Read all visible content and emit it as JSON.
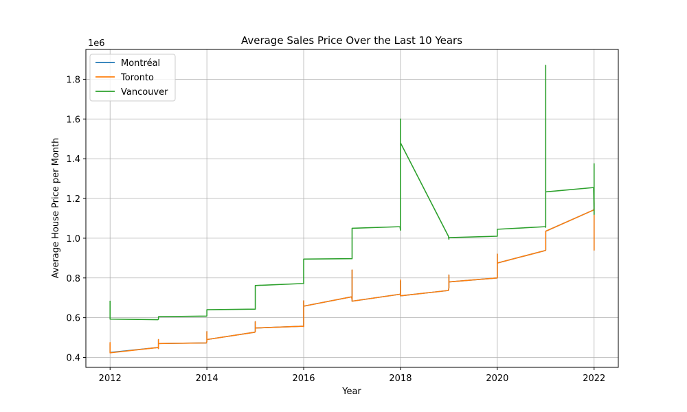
{
  "chart_data": {
    "type": "line",
    "title": "Average Sales Price Over the Last 10 Years",
    "xlabel": "Year",
    "ylabel": "Average House Price per Month",
    "y_offset_label": "1e6",
    "xlim": [
      2011.5,
      2022.5
    ],
    "ylim": [
      0.35,
      1.95
    ],
    "x_ticks": [
      2012,
      2014,
      2016,
      2018,
      2020,
      2022
    ],
    "x_tick_labels": [
      "2012",
      "2014",
      "2016",
      "2018",
      "2020",
      "2022"
    ],
    "y_ticks": [
      0.4,
      0.6,
      0.8,
      1.0,
      1.2,
      1.4,
      1.6,
      1.8
    ],
    "y_tick_labels": [
      "0.4",
      "0.6",
      "0.8",
      "1.0",
      "1.2",
      "1.4",
      "1.6",
      "1.8"
    ],
    "grid": true,
    "legend_position": "top-left",
    "series": [
      {
        "name": "Montréal",
        "color": "#1f77b4",
        "x": [
          2012.0,
          2012.0,
          2012.0,
          2012.99,
          2013.0,
          2013.0,
          2013.0,
          2013.99,
          2014.0,
          2014.0,
          2014.0,
          2014.99,
          2015.0,
          2015.0,
          2015.0,
          2015.99,
          2016.0,
          2016.0,
          2016.0,
          2016.99,
          2017.0,
          2017.0,
          2017.0,
          2017.99,
          2018.0,
          2018.0,
          2018.0,
          2018.99,
          2019.0,
          2019.0,
          2019.0,
          2019.99,
          2020.0,
          2020.0,
          2020.0,
          2020.99,
          2021.0,
          2021.0,
          2021.0,
          2021.99,
          2022.0,
          2022.0,
          2022.0
        ],
        "y": [
          0.425,
          0.47,
          0.425,
          0.45,
          0.445,
          0.49,
          0.47,
          0.473,
          0.48,
          0.53,
          0.49,
          0.527,
          0.53,
          0.58,
          0.548,
          0.557,
          0.555,
          0.685,
          0.658,
          0.705,
          0.69,
          0.84,
          0.683,
          0.718,
          0.715,
          0.785,
          0.71,
          0.737,
          0.75,
          0.815,
          0.78,
          0.8,
          0.8,
          0.92,
          0.875,
          0.938,
          0.94,
          1.035,
          1.035,
          1.142,
          1.15,
          0.94,
          1.18
        ]
      },
      {
        "name": "Toronto",
        "color": "#ff7f0e",
        "x": [
          2012.0,
          2012.0,
          2012.0,
          2012.99,
          2013.0,
          2013.0,
          2013.0,
          2013.99,
          2014.0,
          2014.0,
          2014.0,
          2014.99,
          2015.0,
          2015.0,
          2015.0,
          2015.99,
          2016.0,
          2016.0,
          2016.0,
          2016.99,
          2017.0,
          2017.0,
          2017.0,
          2017.99,
          2018.0,
          2018.0,
          2018.0,
          2018.99,
          2019.0,
          2019.0,
          2019.0,
          2019.99,
          2020.0,
          2020.0,
          2020.0,
          2020.99,
          2021.0,
          2021.0,
          2021.0,
          2021.99,
          2022.0,
          2022.0,
          2022.0
        ],
        "y": [
          0.423,
          0.475,
          0.423,
          0.45,
          0.445,
          0.49,
          0.47,
          0.473,
          0.48,
          0.53,
          0.49,
          0.527,
          0.53,
          0.58,
          0.548,
          0.557,
          0.555,
          0.685,
          0.658,
          0.705,
          0.69,
          0.84,
          0.683,
          0.718,
          0.715,
          0.79,
          0.71,
          0.737,
          0.75,
          0.815,
          0.78,
          0.8,
          0.8,
          0.92,
          0.875,
          0.938,
          0.94,
          1.035,
          1.035,
          1.142,
          1.15,
          0.94,
          1.19
        ]
      },
      {
        "name": "Vancouver",
        "color": "#2ca02c",
        "x": [
          2012.0,
          2012.0,
          2012.99,
          2013.0,
          2013.0,
          2013.99,
          2014.0,
          2014.0,
          2014.99,
          2015.0,
          2015.0,
          2015.99,
          2016.0,
          2016.0,
          2016.99,
          2017.0,
          2017.0,
          2017.99,
          2018.0,
          2018.0,
          2018.0,
          2018.99,
          2019.0,
          2019.0,
          2019.99,
          2020.0,
          2020.0,
          2020.99,
          2021.0,
          2021.0,
          2021.0,
          2021.99,
          2022.0,
          2022.0,
          2022.0
        ],
        "y": [
          0.685,
          0.593,
          0.59,
          0.593,
          0.605,
          0.608,
          0.61,
          0.64,
          0.643,
          0.643,
          0.762,
          0.772,
          0.772,
          0.895,
          0.897,
          0.897,
          1.05,
          1.058,
          1.04,
          1.6,
          1.48,
          1.01,
          0.995,
          1.003,
          1.01,
          1.01,
          1.045,
          1.058,
          1.055,
          1.87,
          1.233,
          1.255,
          1.12,
          1.375,
          1.26
        ]
      }
    ]
  }
}
